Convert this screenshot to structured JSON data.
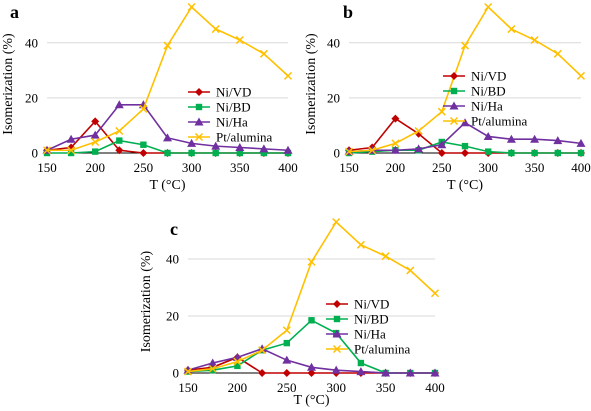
{
  "chart_data": [
    {
      "type": "line",
      "panel_label": "a",
      "xlabel": "T (°C)",
      "ylabel": "Isomerization (%)",
      "xlim": [
        150,
        400
      ],
      "ylim": [
        0,
        53
      ],
      "xticks": [
        150,
        200,
        250,
        300,
        350,
        400
      ],
      "yticks": [
        0,
        20,
        40
      ],
      "legend_position": "right",
      "grid": "horizontal",
      "x": [
        150,
        175,
        200,
        225,
        250,
        275,
        300,
        325,
        350,
        375,
        400
      ],
      "series": [
        {
          "name": "Ni/VD",
          "color": "#C00000",
          "marker": "diamond",
          "values": [
            1,
            2,
            11.5,
            1,
            0,
            0,
            0,
            0,
            0,
            0,
            0
          ]
        },
        {
          "name": "Ni/BD",
          "color": "#00B050",
          "marker": "square",
          "values": [
            0,
            0,
            0.5,
            4.5,
            3,
            0,
            0,
            0,
            0,
            0,
            0
          ]
        },
        {
          "name": "Ni/Ha",
          "color": "#7030A0",
          "marker": "triangle",
          "values": [
            1,
            5,
            6.5,
            17.5,
            17.5,
            5.5,
            3.5,
            2.5,
            2,
            1.5,
            1
          ]
        },
        {
          "name": "Pt/alumina",
          "color": "#FFC000",
          "marker": "x",
          "values": [
            1,
            1,
            4,
            8,
            16,
            39,
            53,
            45,
            41,
            36,
            28
          ]
        }
      ]
    },
    {
      "type": "line",
      "panel_label": "b",
      "xlabel": "T (°C)",
      "ylabel": "Isomerization (%)",
      "xlim": [
        150,
        400
      ],
      "ylim": [
        0,
        53
      ],
      "xticks": [
        150,
        200,
        250,
        300,
        350,
        400
      ],
      "yticks": [
        0,
        20,
        40
      ],
      "legend_position": "right",
      "grid": "horizontal",
      "x": [
        150,
        175,
        200,
        225,
        250,
        275,
        300,
        325,
        350,
        375,
        400
      ],
      "series": [
        {
          "name": "Ni/VD",
          "color": "#C00000",
          "marker": "diamond",
          "values": [
            1,
            2,
            12.5,
            7,
            0,
            0,
            0,
            0,
            0,
            0,
            0
          ]
        },
        {
          "name": "Ni/BD",
          "color": "#00B050",
          "marker": "square",
          "values": [
            0,
            0.5,
            1,
            1,
            4,
            2.5,
            0.5,
            0,
            0,
            0,
            0
          ]
        },
        {
          "name": "Ni/Ha",
          "color": "#7030A0",
          "marker": "triangle",
          "values": [
            0.5,
            1,
            1,
            1.5,
            3,
            11,
            6,
            5,
            5,
            4.5,
            3.5
          ]
        },
        {
          "name": "Pt/alumina",
          "color": "#FFC000",
          "marker": "x",
          "values": [
            0.5,
            1,
            3.5,
            8,
            15,
            39,
            53,
            45,
            41,
            36,
            28
          ]
        }
      ]
    },
    {
      "type": "line",
      "panel_label": "c",
      "xlabel": "T (°C)",
      "ylabel": "Isomerization (%)",
      "xlim": [
        150,
        400
      ],
      "ylim": [
        0,
        53
      ],
      "xticks": [
        150,
        200,
        250,
        300,
        350,
        400
      ],
      "yticks": [
        0,
        20,
        40
      ],
      "legend_position": "center",
      "grid": "horizontal",
      "x": [
        150,
        175,
        200,
        225,
        250,
        275,
        300,
        325,
        350,
        375,
        400
      ],
      "series": [
        {
          "name": "Ni/VD",
          "color": "#C00000",
          "marker": "diamond",
          "values": [
            1,
            2,
            5.5,
            0,
            0,
            0,
            0,
            0,
            0,
            0,
            0
          ]
        },
        {
          "name": "Ni/BD",
          "color": "#00B050",
          "marker": "square",
          "values": [
            0.5,
            1,
            2.5,
            8,
            10.5,
            18.5,
            14,
            3.5,
            0,
            0,
            0
          ]
        },
        {
          "name": "Ni/Ha",
          "color": "#7030A0",
          "marker": "triangle",
          "values": [
            1,
            3.5,
            5.5,
            8.5,
            4.5,
            2,
            1,
            0.5,
            0,
            0,
            0
          ]
        },
        {
          "name": "Pt/alumina",
          "color": "#FFC000",
          "marker": "x",
          "values": [
            0.5,
            1.5,
            4,
            8,
            15,
            39,
            53,
            45,
            41,
            36,
            28
          ]
        }
      ]
    }
  ]
}
